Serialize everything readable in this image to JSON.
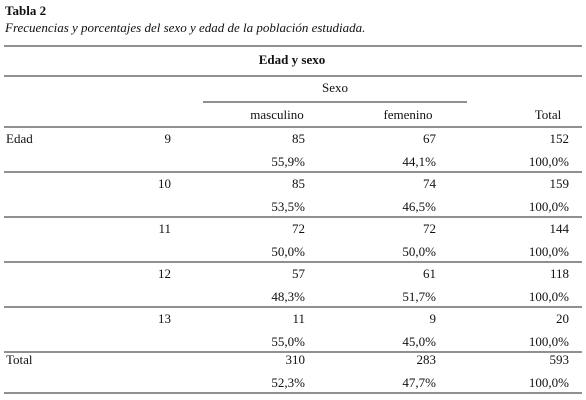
{
  "title": "Tabla 2",
  "subtitle": "Frecuencias y porcentajes del sexo y edad de la población estudiada.",
  "table": {
    "caption": "Edad y sexo",
    "group_header": "Sexo",
    "columns": [
      "masculino",
      "femenino",
      "Total"
    ],
    "row_header": "Edad",
    "rows": [
      {
        "age": "9",
        "counts": [
          "85",
          "67",
          "152"
        ],
        "percents": [
          "55,9%",
          "44,1%",
          "100,0%"
        ]
      },
      {
        "age": "10",
        "counts": [
          "85",
          "74",
          "159"
        ],
        "percents": [
          "53,5%",
          "46,5%",
          "100,0%"
        ]
      },
      {
        "age": "11",
        "counts": [
          "72",
          "72",
          "144"
        ],
        "percents": [
          "50,0%",
          "50,0%",
          "100,0%"
        ]
      },
      {
        "age": "12",
        "counts": [
          "57",
          "61",
          "118"
        ],
        "percents": [
          "48,3%",
          "51,7%",
          "100,0%"
        ]
      },
      {
        "age": "13",
        "counts": [
          "11",
          "9",
          "20"
        ],
        "percents": [
          "55,0%",
          "45,0%",
          "100,0%"
        ]
      }
    ],
    "total": {
      "label": "Total",
      "counts": [
        "310",
        "283",
        "593"
      ],
      "percents": [
        "52,3%",
        "47,7%",
        "100,0%"
      ]
    }
  }
}
